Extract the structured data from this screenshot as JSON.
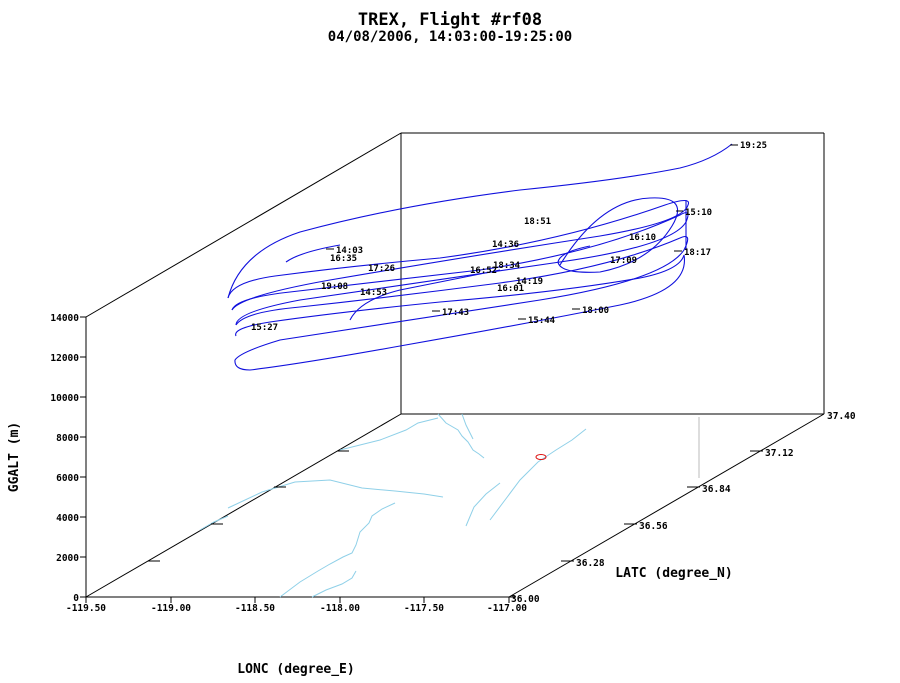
{
  "chart_data": {
    "type": "line",
    "title": "TREX, Flight #rf08",
    "subtitle": "04/08/2006, 14:03:00-19:25:00",
    "xlabel": "LONC (degree_E)",
    "ylabel": "LATC (degree_N)",
    "zlabel": "GGALT (m)",
    "x_ticks": [
      "-119.50",
      "-119.00",
      "-118.50",
      "-118.00",
      "-117.50",
      "-117.00"
    ],
    "y_ticks": [
      "36.00",
      "36.28",
      "36.56",
      "36.84",
      "37.12",
      "37.40"
    ],
    "z_ticks": [
      "0",
      "2000",
      "4000",
      "6000",
      "8000",
      "10000",
      "12000",
      "14000"
    ],
    "xlim": [
      -119.5,
      -117.0
    ],
    "ylim": [
      36.0,
      37.4
    ],
    "zlim": [
      0,
      14000
    ],
    "grid": false,
    "series": [
      {
        "color": "#1010dd",
        "time_labels": [
          "19:25",
          "15:10",
          "16:10",
          "18:17",
          "17:09",
          "18:51",
          "14:36",
          "14:03",
          "16:35",
          "17:26",
          "16:52",
          "18:34",
          "19:08",
          "14:53",
          "14:19",
          "16:01",
          "17:43",
          "15:44",
          "18:00",
          "15:27"
        ]
      }
    ]
  }
}
